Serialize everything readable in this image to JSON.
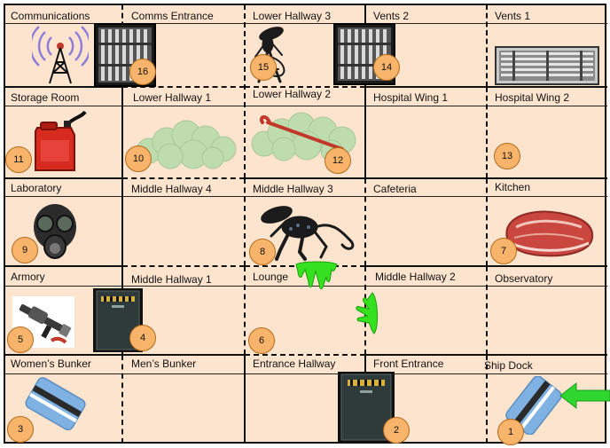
{
  "rooms": {
    "communications": "Communications",
    "comms_entrance": "Comms Entrance",
    "lower_hallway_3": "Lower Hallway 3",
    "vents_2": "Vents 2",
    "vents_1": "Vents 1",
    "storage_room": "Storage Room",
    "lower_hallway_1": "Lower Hallway 1",
    "lower_hallway_2": "Lower Hallway 2",
    "hospital_wing_1": "Hospital Wing 1",
    "hospital_wing_2": "Hospital Wing 2",
    "laboratory": "Laboratory",
    "middle_hallway_4": "Middle Hallway 4",
    "middle_hallway_3": "Middle Hallway 3",
    "cafeteria": "Cafeteria",
    "kitchen": "Kitchen",
    "armory": "Armory",
    "middle_hallway_1": "Middle Hallway 1",
    "lounge": "Lounge",
    "middle_hallway_2": "Middle Hallway 2",
    "observatory": "Observatory",
    "womens_bunker": "Women’s Bunker",
    "mens_bunker": "Men’s Bunker",
    "entrance_hallway": "Entrance Hallway",
    "front_entrance": "Front Entrance",
    "ship_dock": "Ship Dock"
  },
  "markers": {
    "m1": "1",
    "m2": "2",
    "m3": "3",
    "m4": "4",
    "m5": "5",
    "m6": "6",
    "m7": "7",
    "m8": "8",
    "m9": "9",
    "m10": "10",
    "m11": "11",
    "m12": "12",
    "m13": "13",
    "m14": "14",
    "m15": "15",
    "m16": "16"
  },
  "icons": {
    "antenna": "radio-antenna-icon",
    "vent": "vent-grate-icon",
    "alien": "xenomorph-alien-icon",
    "gas_can": "fuel-can-icon",
    "gas_cloud": "toxic-gas-cloud-icon",
    "crowbar": "crowbar-icon",
    "gas_mask": "gas-mask-icon",
    "meat": "raw-meat-icon",
    "slime": "acid-slime-icon",
    "flamethrower": "flamethrower-icon",
    "door": "security-door-icon",
    "keycard": "keycard-icon",
    "arrow": "entry-arrow-icon"
  },
  "colors": {
    "room_fill": "#fde4cf",
    "marker_fill": "#f7b46a",
    "arrow": "#2fd62f",
    "slime": "#35e01f",
    "keycard": "#6fa8dc"
  }
}
